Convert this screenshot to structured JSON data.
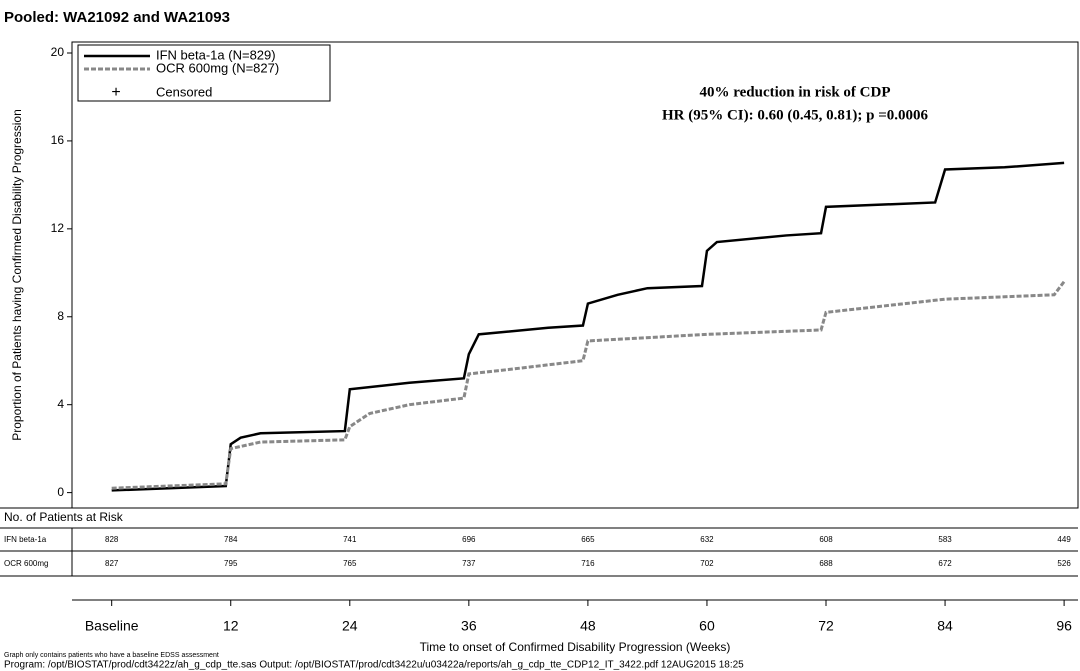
{
  "chart_data": {
    "type": "line",
    "title": "Pooled: WA21092 and WA21093",
    "y_label": "Proportion of Patients having Confirmed Disability Progression",
    "x_label": "Time to onset of Confirmed Disability Progression (Weeks)",
    "annotations": [
      "40% reduction in risk of CDP",
      "HR (95% CI): 0.60 (0.45, 0.81); p =0.0006"
    ],
    "censored_label": "Censored",
    "series": [
      {
        "name": "IFN beta-1a (N=829)",
        "color": "#000000",
        "x": [
          0,
          11.5,
          12,
          13,
          15,
          23.5,
          24,
          30,
          35.5,
          36,
          37,
          44,
          47.5,
          48,
          51,
          54,
          59.5,
          60,
          61,
          68,
          71.5,
          72,
          83,
          84,
          90,
          96
        ],
        "values": [
          0.1,
          0.3,
          2.2,
          2.5,
          2.7,
          2.8,
          4.7,
          5.0,
          5.2,
          6.3,
          7.2,
          7.5,
          7.6,
          8.6,
          9.0,
          9.3,
          9.4,
          11.0,
          11.4,
          11.7,
          11.8,
          13.0,
          13.2,
          14.7,
          14.8,
          15.0
        ]
      },
      {
        "name": "OCR 600mg (N=827)",
        "color": "#888888",
        "x": [
          0,
          11.5,
          12,
          15,
          23.5,
          24,
          26,
          30,
          35.5,
          36,
          40,
          47.5,
          48,
          60,
          71.5,
          72,
          84,
          95,
          96
        ],
        "values": [
          0.2,
          0.4,
          2.0,
          2.3,
          2.4,
          3.0,
          3.6,
          4.0,
          4.3,
          5.4,
          5.6,
          6.0,
          6.9,
          7.2,
          7.4,
          8.2,
          8.8,
          9.0,
          9.6
        ]
      }
    ],
    "xlim": [
      -4,
      97.4
    ],
    "ylim": [
      -0.7,
      20.5
    ],
    "yticks": [
      0,
      4,
      8,
      12,
      16,
      20
    ],
    "xticks": [
      {
        "value": 0,
        "label": "Baseline"
      },
      12,
      24,
      36,
      48,
      60,
      72,
      84,
      96
    ],
    "risk_table": {
      "title": "No. of Patients at Risk",
      "rows": [
        {
          "name": "IFN beta-1a",
          "values": [
            828,
            784,
            741,
            696,
            665,
            632,
            608,
            583,
            449
          ]
        },
        {
          "name": "OCR 600mg",
          "values": [
            827,
            795,
            765,
            737,
            716,
            702,
            688,
            672,
            526
          ]
        }
      ]
    },
    "footnotes": [
      "Graph only contains patients who have a baseline EDSS assessment",
      "Program: /opt/BIOSTAT/prod/cdt3422z/ah_g_cdp_tte.sas Output: /opt/BIOSTAT/prod/cdt3422u/u03422a/reports/ah_g_cdp_tte_CDP12_IT_3422.pdf 12AUG2015 18:25"
    ]
  }
}
